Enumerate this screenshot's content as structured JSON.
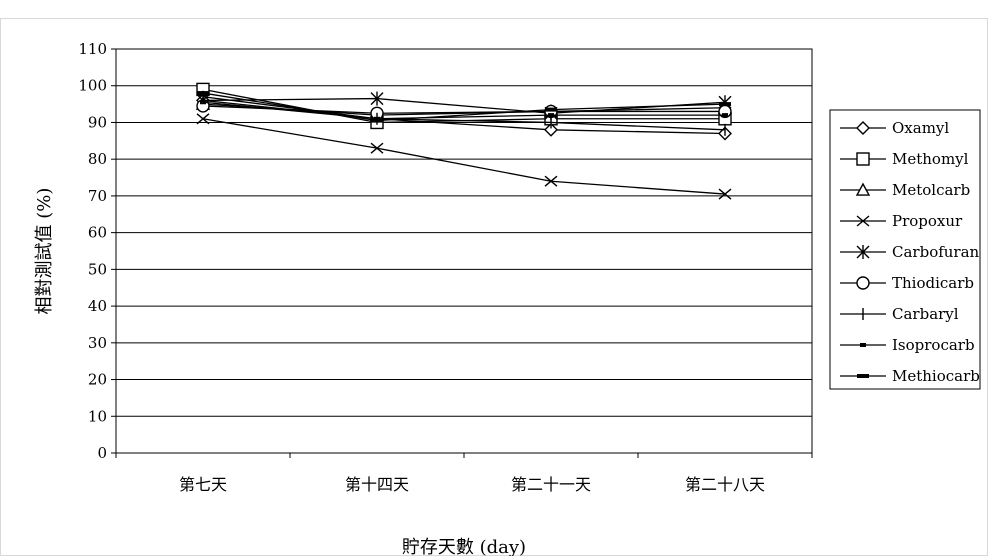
{
  "chart_data": {
    "type": "line",
    "title": "",
    "xlabel": "貯存天數 (day)",
    "ylabel": "相對測試值 (%)",
    "categories": [
      "第七天",
      "第十四天",
      "第二十一天",
      "第二十八天"
    ],
    "ylim": [
      0,
      110
    ],
    "yticks": [
      0,
      10,
      20,
      30,
      40,
      50,
      60,
      70,
      80,
      90,
      100,
      110
    ],
    "grid": true,
    "legend_position": "right",
    "series": [
      {
        "name": "Oxamyl",
        "marker": "diamond",
        "values": [
          96,
          91,
          88,
          87
        ]
      },
      {
        "name": "Methomyl",
        "marker": "square",
        "values": [
          99,
          90,
          91,
          91
        ]
      },
      {
        "name": "Metolcarb",
        "marker": "triangle",
        "values": [
          95,
          92,
          93,
          94
        ]
      },
      {
        "name": "Propoxur",
        "marker": "x",
        "values": [
          91,
          83,
          74,
          70.5
        ]
      },
      {
        "name": "Carbofuran",
        "marker": "asterisk",
        "values": [
          96,
          96.5,
          92.5,
          95.5
        ]
      },
      {
        "name": "Thiodicarb",
        "marker": "circle",
        "values": [
          94.5,
          92.5,
          93,
          93
        ]
      },
      {
        "name": "Carbaryl",
        "marker": "plus",
        "values": [
          97,
          91,
          90,
          88
        ]
      },
      {
        "name": "Isoprocarb",
        "marker": "dot",
        "values": [
          95.5,
          91,
          92,
          92
        ]
      },
      {
        "name": "Methiocarb",
        "marker": "dash",
        "values": [
          98,
          90.5,
          93.5,
          95
        ]
      }
    ]
  }
}
